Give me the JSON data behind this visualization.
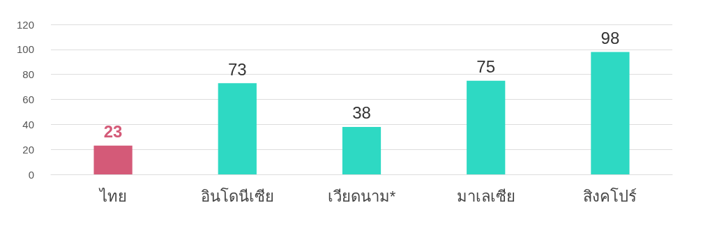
{
  "chart_data": {
    "type": "bar",
    "categories": [
      "ไทย",
      "อินโดนีเซีย",
      "เวียดนาม*",
      "มาเลเซีย",
      "สิงคโปร์"
    ],
    "values": [
      23,
      73,
      38,
      75,
      98
    ],
    "colors": [
      "#d45a78",
      "#2ed9c3",
      "#2ed9c3",
      "#2ed9c3",
      "#2ed9c3"
    ],
    "ylim": [
      0,
      120
    ],
    "yticks": [
      0,
      20,
      40,
      60,
      80,
      100,
      120
    ],
    "grid": "y",
    "data_labels": true
  }
}
